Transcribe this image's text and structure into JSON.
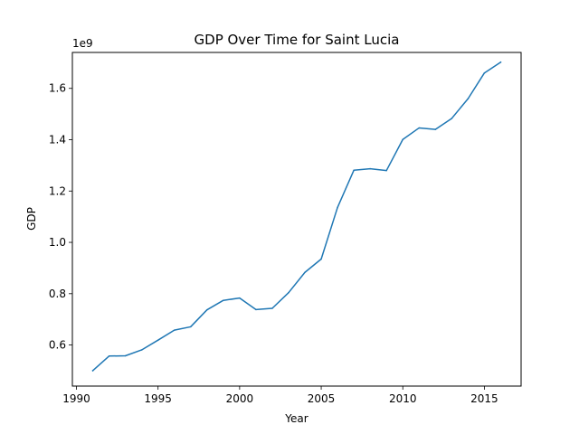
{
  "chart_data": {
    "type": "line",
    "title": "GDP Over Time for Saint Lucia",
    "xlabel": "Year",
    "ylabel": "GDP",
    "y_offset_label": "1e9",
    "xlim": [
      1989.75,
      2017.25
    ],
    "ylim": [
      0.44,
      1.74
    ],
    "x_ticks": [
      1990,
      1995,
      2000,
      2005,
      2010,
      2015
    ],
    "x_tick_labels": [
      "1990",
      "1995",
      "2000",
      "2005",
      "2010",
      "2015"
    ],
    "y_ticks": [
      0.6,
      0.8,
      1.0,
      1.2,
      1.4,
      1.6
    ],
    "y_tick_labels": [
      "0.6",
      "0.8",
      "1.0",
      "1.2",
      "1.4",
      "1.6"
    ],
    "y_units": "1e9",
    "grid": false,
    "series": [
      {
        "color": "#1f77b4",
        "x": [
          1991,
          1992,
          1993,
          1994,
          1995,
          1996,
          1997,
          1998,
          1999,
          2000,
          2001,
          2002,
          2003,
          2004,
          2005,
          2006,
          2007,
          2008,
          2009,
          2010,
          2011,
          2012,
          2013,
          2014,
          2015,
          2016
        ],
        "values": [
          0.5,
          0.557,
          0.558,
          0.581,
          0.619,
          0.658,
          0.671,
          0.737,
          0.774,
          0.783,
          0.738,
          0.743,
          0.804,
          0.883,
          0.935,
          1.136,
          1.281,
          1.287,
          1.28,
          1.401,
          1.446,
          1.44,
          1.483,
          1.56,
          1.66,
          1.702
        ]
      }
    ]
  }
}
